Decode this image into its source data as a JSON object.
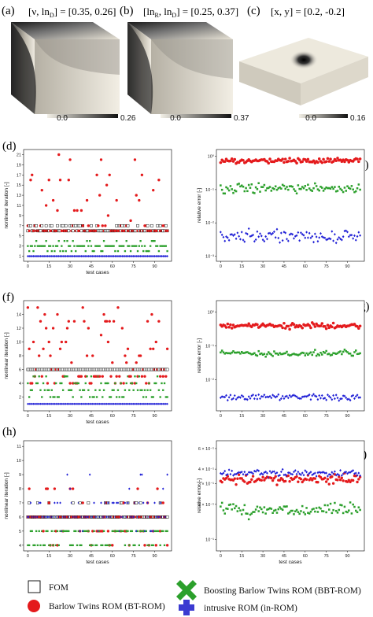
{
  "top_row": [
    {
      "letter": "(a)",
      "param_html": "[ν, ln",
      "sub1": "D",
      "param_tail": "] = [0.35, 0.26]",
      "cmin": "0.0",
      "cmax": "0.26"
    },
    {
      "letter": "(b)",
      "param_html": "[ln",
      "sub1": "R",
      "param_mid": ", ln",
      "sub2": "D",
      "param_tail": "] = [0.25, 0.37]",
      "cmin": "0.0",
      "cmax": "0.37"
    },
    {
      "letter": "(c)",
      "param_html": "[x, y] = [0.2, -0.2]",
      "cmin": "0.0",
      "cmax": "0.16"
    }
  ],
  "legend": {
    "fom": "FOM",
    "bt": "Barlow Twins ROM (BT-ROM)",
    "bbt": "Boosting Barlow Twins ROM (BBT-ROM)",
    "in": "intrusive ROM (in-ROM)"
  },
  "colors": {
    "fom": "#000000",
    "bt": "#e41a1c",
    "bbt": "#2ca02c",
    "in": "#1f1fd6"
  },
  "chart_data": [
    {
      "type": "scatter",
      "panel": "(d)",
      "xlabel": "test cases",
      "ylabel": "nonlinear iteration [-]",
      "xticks": [
        0,
        15,
        30,
        45,
        60,
        75,
        90
      ],
      "xlim": [
        -3,
        102
      ],
      "yticks": [
        1,
        3,
        5,
        7,
        9,
        11,
        13,
        15,
        17,
        19,
        21
      ],
      "ylim": [
        0,
        22
      ],
      "yscale": "linear",
      "series": [
        {
          "name": "FOM",
          "marker": "square",
          "values": "const:6|7"
        },
        {
          "name": "BT-ROM",
          "marker": "circle",
          "values": "sample:d_bt"
        },
        {
          "name": "BBT-ROM",
          "marker": "square-filled",
          "values": "sample:d_bbt"
        },
        {
          "name": "in-ROM",
          "marker": "diamond",
          "values": "const:1"
        }
      ]
    },
    {
      "type": "scatter",
      "panel": "(e)",
      "xlabel": "",
      "ylabel": "relative error [-]",
      "xticks": [
        0,
        15,
        30,
        45,
        60,
        75,
        90
      ],
      "xlim": [
        -3,
        102
      ],
      "yticks_labels": [
        "10⁰",
        "10⁻¹",
        "10⁻²",
        "10⁻³"
      ],
      "ylim": [
        0.0007,
        1.6
      ],
      "yscale": "log",
      "series": [
        {
          "name": "BT-ROM",
          "approx_level": 0.75
        },
        {
          "name": "BBT-ROM",
          "approx_level": 0.11
        },
        {
          "name": "in-ROM",
          "approx_level": 0.004
        }
      ]
    },
    {
      "type": "scatter",
      "panel": "(f)",
      "xlabel": "test cases",
      "ylabel": "nonlinear iteration [-]",
      "xticks": [
        0,
        15,
        30,
        45,
        60,
        75,
        90
      ],
      "xlim": [
        -3,
        102
      ],
      "yticks": [
        2,
        4,
        6,
        8,
        10,
        12,
        14
      ],
      "ylim": [
        0,
        16
      ],
      "yscale": "linear",
      "series": [
        {
          "name": "FOM",
          "approx_level": 6
        },
        {
          "name": "BT-ROM",
          "approx_range": [
            4,
            15
          ]
        },
        {
          "name": "BBT-ROM",
          "approx_range": [
            2,
            5
          ]
        },
        {
          "name": "in-ROM",
          "approx_level": 1
        }
      ]
    },
    {
      "type": "scatter",
      "panel": "(g)",
      "xlabel": "",
      "ylabel": "relative error [-]",
      "xticks": [
        0,
        15,
        30,
        45,
        60,
        75,
        90
      ],
      "xlim": [
        -3,
        102
      ],
      "yticks_labels": [
        "10⁰",
        "10⁻¹",
        "10⁻²"
      ],
      "ylim": [
        0.0012,
        2.2
      ],
      "yscale": "log",
      "series": [
        {
          "name": "BT-ROM",
          "approx_level": 0.4
        },
        {
          "name": "BBT-ROM",
          "approx_level": 0.06
        },
        {
          "name": "in-ROM",
          "approx_level": 0.003
        }
      ]
    },
    {
      "type": "scatter",
      "panel": "(h)",
      "xlabel": "test cases",
      "ylabel": "nonlinear iteration [-]",
      "xticks": [
        0,
        15,
        30,
        45,
        60,
        75,
        90
      ],
      "xlim": [
        -3,
        102
      ],
      "yticks": [
        4,
        5,
        6,
        7,
        8,
        9,
        10,
        11
      ],
      "ylim": [
        3.6,
        11.4
      ],
      "yscale": "linear",
      "series": [
        {
          "name": "FOM",
          "approx_level": 6
        },
        {
          "name": "BT-ROM",
          "approx_range": [
            4,
            8
          ]
        },
        {
          "name": "BBT-ROM",
          "approx_range": [
            4,
            5
          ]
        },
        {
          "name": "in-ROM",
          "approx_range": [
            4,
            11
          ]
        }
      ]
    },
    {
      "type": "scatter",
      "panel": "(i)",
      "xlabel": "test cases",
      "ylabel": "relative error [-]",
      "xticks": [
        0,
        15,
        30,
        45,
        60,
        75,
        90
      ],
      "xlim": [
        -3,
        102
      ],
      "yticks_labels": [
        "6 × 10⁻¹",
        "4 × 10⁻¹",
        "3 × 10⁻¹",
        "2 × 10⁻¹",
        "10⁻¹"
      ],
      "ylim": [
        0.08,
        0.7
      ],
      "yscale": "log",
      "series": [
        {
          "name": "BT-ROM",
          "approx_level": 0.33
        },
        {
          "name": "BBT-ROM",
          "approx_level": 0.18
        },
        {
          "name": "in-ROM",
          "approx_level": 0.37
        }
      ]
    }
  ]
}
